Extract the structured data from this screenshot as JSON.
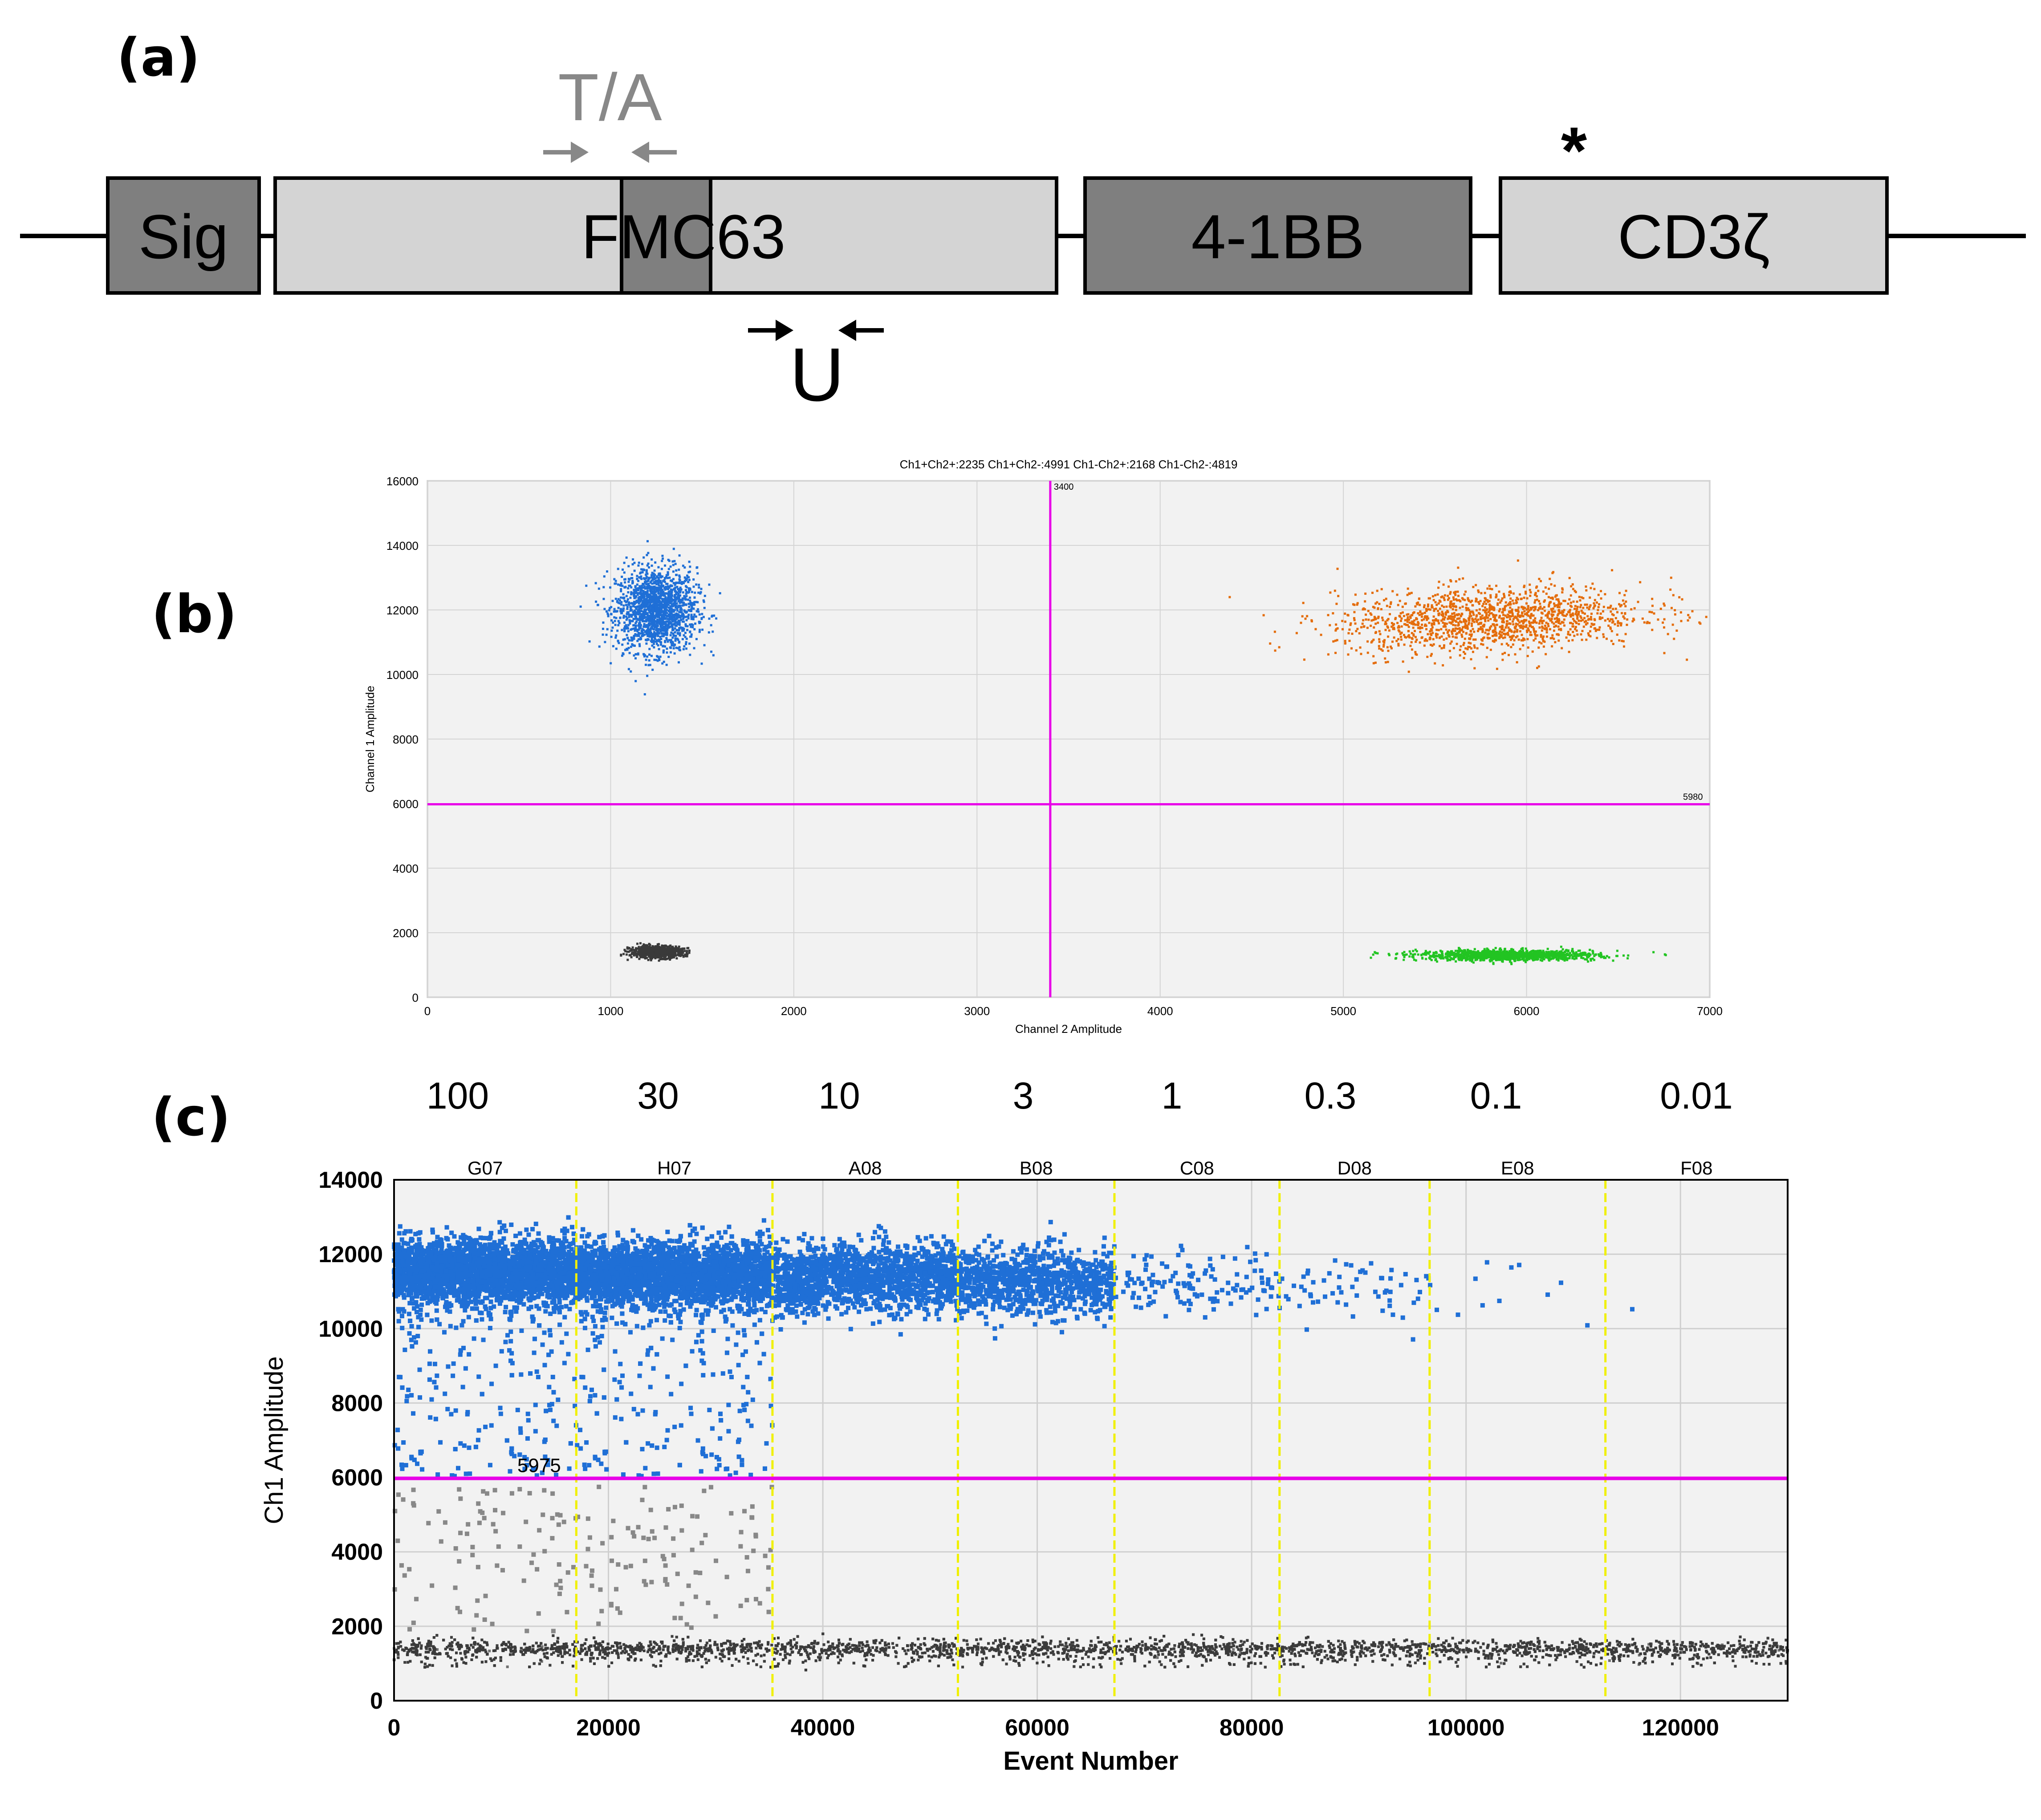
{
  "panels": {
    "a": "(a)",
    "b": "(b)",
    "c": "(c)"
  },
  "construct": {
    "segments": [
      {
        "label": "Sig",
        "color": "#7f7f7f"
      },
      {
        "label": "FMC63",
        "color": "#d4d4d4"
      },
      {
        "label": "4-1BB",
        "color": "#7f7f7f"
      },
      {
        "label": "CD3ζ",
        "color": "#d4d4d4"
      }
    ],
    "primer_ta_label": "T/A",
    "primer_u_label": "U",
    "mutation_marker": "*"
  },
  "chart_data": [
    {
      "type": "scatter",
      "title": "Ch1+Ch2+:2235  Ch1+Ch2-:4991  Ch1-Ch2+:2168  Ch1-Ch2-:4819",
      "xlabel": "Channel 2 Amplitude",
      "ylabel": "Channel 1 Amplitude",
      "xlim": [
        0,
        7000
      ],
      "ylim": [
        0,
        16000
      ],
      "xticks": [
        "0",
        "1000",
        "2000",
        "3000",
        "4000",
        "5000",
        "6000",
        "7000"
      ],
      "yticks": [
        "0",
        "2000",
        "4000",
        "6000",
        "8000",
        "10000",
        "12000",
        "14000",
        "16000"
      ],
      "thresholds": {
        "x": 3400,
        "y": 5980,
        "x_label": "3400",
        "y_label": "5980"
      },
      "clusters": [
        {
          "name": "Ch1+Ch2-",
          "count": 4991,
          "color": "#1f6fd6",
          "center_x": 1250,
          "center_y": 12000
        },
        {
          "name": "Ch1+Ch2+",
          "count": 2235,
          "color": "#e46c0a",
          "center_x": 5800,
          "center_y": 11700
        },
        {
          "name": "Ch1-Ch2-",
          "count": 4819,
          "color": "#3a3a3a",
          "center_x": 1250,
          "center_y": 1400
        },
        {
          "name": "Ch1-Ch2+",
          "count": 2168,
          "color": "#22c422",
          "center_x": 5900,
          "center_y": 1300
        }
      ]
    },
    {
      "type": "scatter",
      "xlabel": "Event Number",
      "ylabel": "Ch1 Amplitude",
      "xlim": [
        0,
        130000
      ],
      "ylim": [
        0,
        14000
      ],
      "xticks": [
        "0",
        "20000",
        "40000",
        "60000",
        "80000",
        "100000",
        "120000"
      ],
      "yticks": [
        "0",
        "2000",
        "4000",
        "6000",
        "8000",
        "10000",
        "12000",
        "14000"
      ],
      "threshold": 5975,
      "threshold_label": "5975",
      "wells": [
        "G07",
        "H07",
        "A08",
        "B08",
        "C08",
        "D08",
        "E08",
        "F08"
      ],
      "well_boundaries": [
        17000,
        35300,
        52600,
        67200,
        82600,
        96600,
        113000
      ],
      "dilutions": [
        "100",
        "30",
        "10",
        "3",
        "1",
        "0.3",
        "0.1",
        "0.01"
      ],
      "positive_color": "#1f6fd6",
      "negative_color": "#3a3a3a"
    }
  ]
}
